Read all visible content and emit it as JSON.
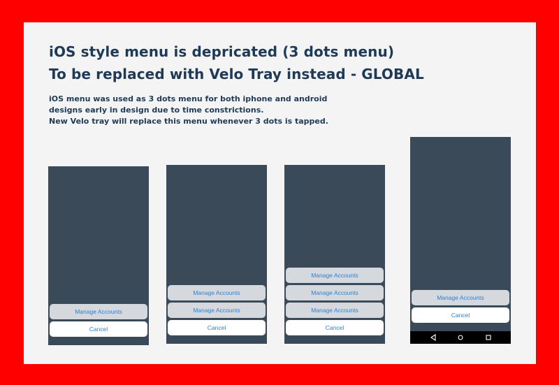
{
  "heading": {
    "line1": "iOS style menu is depricated (3 dots menu)",
    "line2": "To be replaced with Velo Tray instead - GLOBAL"
  },
  "description": {
    "line1": "iOS menu was used as 3 dots menu for both iphone and android",
    "line2": "designs early in design due to time constrictions.",
    "line3": "New Velo tray will replace this menu whenever 3 dots is tapped."
  },
  "colors": {
    "frame": "#ff0000",
    "background": "#f4f4f4",
    "phone_screen": "#3a4a59",
    "option_button": "#d5d9dd",
    "link_text": "#2f80d6",
    "title_text": "#1f3a57"
  },
  "phones": [
    {
      "platform": "iOS",
      "options": [
        "Manage Accounts"
      ],
      "cancel": "Cancel"
    },
    {
      "platform": "iOS",
      "options": [
        "Manage Accounts",
        "Manage Accounts"
      ],
      "cancel": "Cancel"
    },
    {
      "platform": "iOS",
      "options": [
        "Manage Accounts",
        "Manage Accounts",
        "Manage Accounts"
      ],
      "cancel": "Cancel"
    },
    {
      "platform": "Android",
      "options": [
        "Manage Accounts"
      ],
      "cancel": "Cancel",
      "nav_icons": [
        "back-icon",
        "home-icon",
        "recents-icon"
      ]
    }
  ]
}
